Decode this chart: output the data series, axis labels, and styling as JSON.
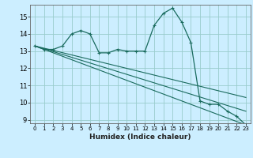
{
  "title": "",
  "xlabel": "Humidex (Indice chaleur)",
  "bg_color": "#cceeff",
  "grid_color": "#99cccc",
  "line_color": "#1a6b5e",
  "xlim": [
    -0.5,
    23.5
  ],
  "ylim": [
    8.8,
    15.7
  ],
  "yticks": [
    9,
    10,
    11,
    12,
    13,
    14,
    15
  ],
  "xticks": [
    0,
    1,
    2,
    3,
    4,
    5,
    6,
    7,
    8,
    9,
    10,
    11,
    12,
    13,
    14,
    15,
    16,
    17,
    18,
    19,
    20,
    21,
    22,
    23
  ],
  "series1_x": [
    0,
    1,
    2,
    3,
    4,
    5,
    6,
    7,
    8,
    9,
    10,
    11,
    12,
    13,
    14,
    15,
    16,
    17,
    18,
    19,
    20,
    21,
    22,
    23
  ],
  "series1_y": [
    13.3,
    13.1,
    13.1,
    13.3,
    14.0,
    14.2,
    14.0,
    12.9,
    12.9,
    13.1,
    13.0,
    13.0,
    13.0,
    14.5,
    15.2,
    15.5,
    14.7,
    13.5,
    10.1,
    9.9,
    9.9,
    9.5,
    9.2,
    8.7
  ],
  "line2_x": [
    0,
    23
  ],
  "line2_y": [
    13.3,
    8.7
  ],
  "line3_x": [
    0,
    23
  ],
  "line3_y": [
    13.3,
    9.5
  ],
  "line4_x": [
    0,
    23
  ],
  "line4_y": [
    13.3,
    10.3
  ]
}
